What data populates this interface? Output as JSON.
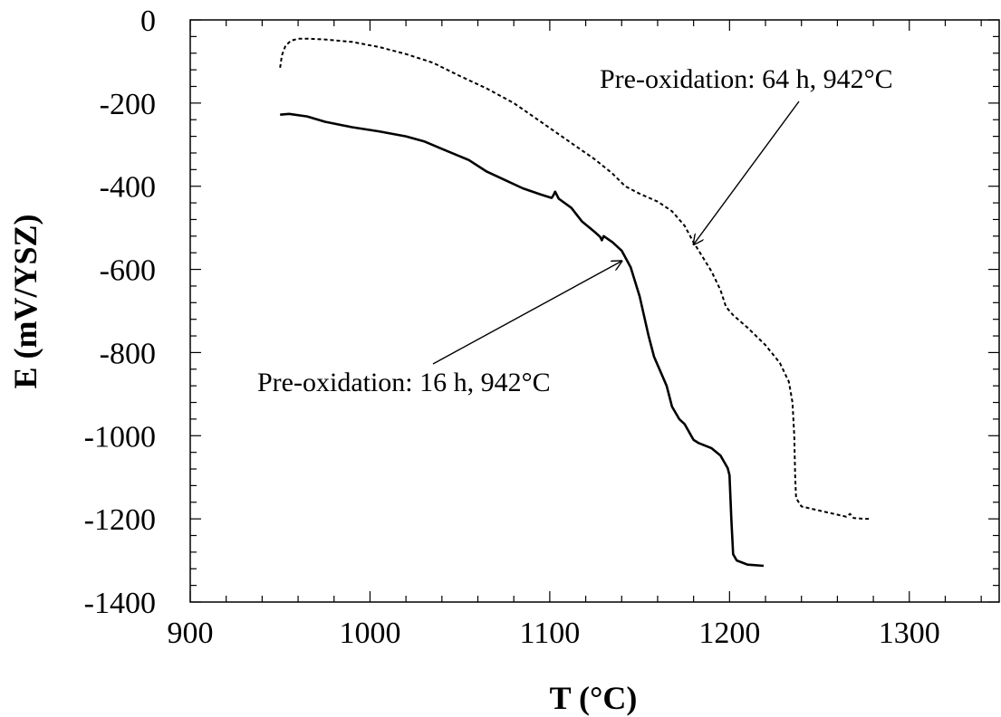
{
  "chart_data": {
    "type": "line",
    "xlabel": "T (°C)",
    "ylabel": "E (mV/YSZ)",
    "xlim": [
      900,
      1350
    ],
    "ylim": [
      -1400,
      0
    ],
    "x_ticks": [
      900,
      1000,
      1100,
      1200,
      1300
    ],
    "y_ticks": [
      0,
      -200,
      -400,
      -600,
      -800,
      -1000,
      -1200,
      -1400
    ],
    "grid": false,
    "series": [
      {
        "line_style": "dashed",
        "color": "#000000",
        "points": [
          [
            950,
            -115
          ],
          [
            951,
            -85
          ],
          [
            953,
            -62
          ],
          [
            956,
            -50
          ],
          [
            960,
            -45
          ],
          [
            965,
            -45
          ],
          [
            975,
            -47
          ],
          [
            990,
            -53
          ],
          [
            1005,
            -65
          ],
          [
            1020,
            -82
          ],
          [
            1035,
            -103
          ],
          [
            1050,
            -135
          ],
          [
            1065,
            -165
          ],
          [
            1080,
            -200
          ],
          [
            1095,
            -245
          ],
          [
            1110,
            -290
          ],
          [
            1125,
            -335
          ],
          [
            1135,
            -370
          ],
          [
            1142,
            -400
          ],
          [
            1150,
            -418
          ],
          [
            1160,
            -437
          ],
          [
            1168,
            -460
          ],
          [
            1175,
            -495
          ],
          [
            1180,
            -535
          ],
          [
            1185,
            -570
          ],
          [
            1190,
            -605
          ],
          [
            1195,
            -650
          ],
          [
            1198,
            -690
          ],
          [
            1202,
            -710
          ],
          [
            1210,
            -740
          ],
          [
            1220,
            -782
          ],
          [
            1228,
            -825
          ],
          [
            1233,
            -870
          ],
          [
            1235,
            -920
          ],
          [
            1236,
            -1000
          ],
          [
            1236.5,
            -1100
          ],
          [
            1237,
            -1150
          ],
          [
            1240,
            -1170
          ],
          [
            1250,
            -1180
          ],
          [
            1260,
            -1190
          ],
          [
            1265,
            -1195
          ],
          [
            1267,
            -1188
          ],
          [
            1269,
            -1198
          ],
          [
            1275,
            -1200
          ],
          [
            1278,
            -1200
          ]
        ]
      },
      {
        "line_style": "solid",
        "color": "#000000",
        "points": [
          [
            950,
            -228
          ],
          [
            955,
            -226
          ],
          [
            965,
            -232
          ],
          [
            975,
            -245
          ],
          [
            990,
            -258
          ],
          [
            1005,
            -268
          ],
          [
            1020,
            -280
          ],
          [
            1030,
            -292
          ],
          [
            1040,
            -310
          ],
          [
            1055,
            -337
          ],
          [
            1065,
            -365
          ],
          [
            1075,
            -385
          ],
          [
            1085,
            -405
          ],
          [
            1095,
            -420
          ],
          [
            1101,
            -428
          ],
          [
            1102,
            -422
          ],
          [
            1103,
            -413
          ],
          [
            1105,
            -430
          ],
          [
            1112,
            -452
          ],
          [
            1118,
            -485
          ],
          [
            1125,
            -510
          ],
          [
            1128,
            -522
          ],
          [
            1129,
            -530
          ],
          [
            1130,
            -520
          ],
          [
            1135,
            -535
          ],
          [
            1140,
            -555
          ],
          [
            1145,
            -595
          ],
          [
            1150,
            -665
          ],
          [
            1155,
            -760
          ],
          [
            1158,
            -810
          ],
          [
            1165,
            -880
          ],
          [
            1168,
            -930
          ],
          [
            1172,
            -960
          ],
          [
            1175,
            -972
          ],
          [
            1180,
            -1010
          ],
          [
            1183,
            -1018
          ],
          [
            1190,
            -1030
          ],
          [
            1195,
            -1048
          ],
          [
            1199,
            -1078
          ],
          [
            1200,
            -1095
          ],
          [
            1201,
            -1200
          ],
          [
            1202,
            -1285
          ],
          [
            1204,
            -1300
          ],
          [
            1210,
            -1310
          ],
          [
            1219,
            -1313
          ]
        ]
      }
    ],
    "annotations": [
      {
        "text": "Pre-oxidation: 64 h, 942°C",
        "arrow_to": [
          1180,
          -540
        ]
      },
      {
        "text": "Pre-oxidation: 16 h, 942°C",
        "arrow_to": [
          1140,
          -580
        ]
      }
    ]
  }
}
